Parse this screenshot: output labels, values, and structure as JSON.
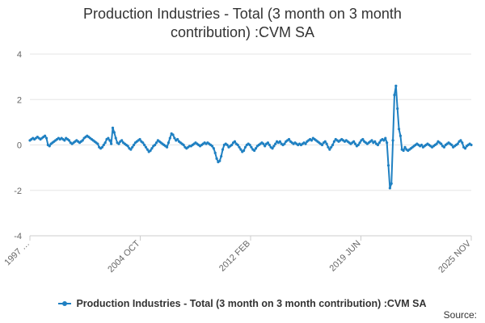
{
  "chart_data": {
    "type": "line",
    "title": "Production Industries - Total (3 month on 3 month contribution) :CVM SA",
    "title_lines": [
      "Production Industries - Total (3 month on 3 month",
      "contribution) :CVM SA"
    ],
    "xlabel": "",
    "ylabel": "",
    "ylim": [
      -4,
      4
    ],
    "yticks": [
      -4,
      -2,
      0,
      2,
      4
    ],
    "xticks": [
      "1997 …",
      "2004 OCT",
      "2012 FEB",
      "2019 JUN",
      "2025 NOV"
    ],
    "grid": "horizontal",
    "legend_position": "bottom",
    "series": [
      {
        "name": "Production Industries - Total (3 month on 3 month contribution) :CVM SA",
        "color": "#1f80c2",
        "values": [
          0.2,
          0.25,
          0.3,
          0.25,
          0.3,
          0.35,
          0.3,
          0.25,
          0.3,
          0.35,
          0.4,
          0.3,
          0.0,
          -0.05,
          0.05,
          0.1,
          0.15,
          0.2,
          0.25,
          0.3,
          0.25,
          0.3,
          0.25,
          0.2,
          0.3,
          0.25,
          0.2,
          0.1,
          0.05,
          0.1,
          0.15,
          0.2,
          0.15,
          0.1,
          0.15,
          0.2,
          0.3,
          0.35,
          0.4,
          0.35,
          0.3,
          0.25,
          0.2,
          0.15,
          0.1,
          0.05,
          -0.1,
          -0.15,
          -0.1,
          0.0,
          0.1,
          0.25,
          0.3,
          0.2,
          0.05,
          0.75,
          0.55,
          0.3,
          0.1,
          0.05,
          0.15,
          0.2,
          0.1,
          0.05,
          0.0,
          -0.05,
          -0.15,
          -0.2,
          -0.1,
          0.0,
          0.1,
          0.15,
          0.2,
          0.25,
          0.15,
          0.1,
          0.0,
          -0.1,
          -0.2,
          -0.3,
          -0.25,
          -0.15,
          -0.05,
          0.0,
          0.1,
          0.2,
          0.15,
          0.1,
          0.05,
          0.0,
          -0.05,
          -0.1,
          0.1,
          0.3,
          0.5,
          0.45,
          0.3,
          0.2,
          0.25,
          0.15,
          0.1,
          0.05,
          0.0,
          -0.1,
          -0.15,
          -0.1,
          -0.05,
          -0.05,
          0.0,
          0.05,
          0.1,
          0.05,
          0.0,
          -0.05,
          0.0,
          0.05,
          0.1,
          0.05,
          0.1,
          0.05,
          0.0,
          -0.05,
          -0.15,
          -0.35,
          -0.6,
          -0.75,
          -0.7,
          -0.5,
          -0.2,
          0.0,
          0.05,
          0.0,
          -0.1,
          -0.05,
          0.0,
          0.1,
          0.15,
          0.05,
          0.0,
          -0.1,
          -0.2,
          -0.3,
          -0.25,
          -0.1,
          0.0,
          0.05,
          0.0,
          -0.1,
          -0.2,
          -0.25,
          -0.15,
          -0.05,
          0.0,
          0.05,
          0.1,
          0.05,
          -0.05,
          0.05,
          0.1,
          0.0,
          -0.1,
          -0.15,
          -0.05,
          0.05,
          0.15,
          0.1,
          0.15,
          0.05,
          0.0,
          0.05,
          0.15,
          0.2,
          0.25,
          0.15,
          0.1,
          0.05,
          0.1,
          0.05,
          0.0,
          0.05,
          0.0,
          0.05,
          0.1,
          0.05,
          0.15,
          0.2,
          0.25,
          0.2,
          0.3,
          0.25,
          0.2,
          0.15,
          0.1,
          0.05,
          0.0,
          0.1,
          0.15,
          0.05,
          -0.1,
          -0.2,
          -0.1,
          0.0,
          0.15,
          0.25,
          0.2,
          0.15,
          0.2,
          0.25,
          0.2,
          0.15,
          0.2,
          0.15,
          0.1,
          0.05,
          0.1,
          0.15,
          0.05,
          -0.05,
          0.0,
          0.1,
          0.2,
          0.25,
          0.15,
          0.1,
          0.05,
          0.1,
          0.15,
          0.2,
          0.1,
          0.15,
          0.05,
          0.0,
          0.1,
          0.2,
          0.25,
          0.2,
          0.3,
          0.1,
          -0.9,
          -1.9,
          -1.7,
          0.2,
          2.2,
          2.6,
          1.6,
          0.7,
          0.4,
          -0.2,
          -0.25,
          -0.1,
          -0.2,
          -0.25,
          -0.2,
          -0.15,
          -0.1,
          -0.05,
          0.0,
          0.05,
          0.0,
          -0.05,
          0.0,
          -0.1,
          -0.05,
          0.0,
          0.05,
          0.0,
          -0.05,
          -0.1,
          -0.05,
          0.0,
          0.05,
          0.15,
          0.1,
          0.05,
          -0.05,
          -0.1,
          0.0,
          0.05,
          0.1,
          0.05,
          0.0,
          -0.1,
          -0.05,
          0.0,
          0.05,
          0.15,
          0.2,
          0.1,
          -0.1,
          -0.15,
          -0.05,
          0.0,
          0.05,
          0.0
        ]
      }
    ]
  },
  "source_label": "Source:"
}
